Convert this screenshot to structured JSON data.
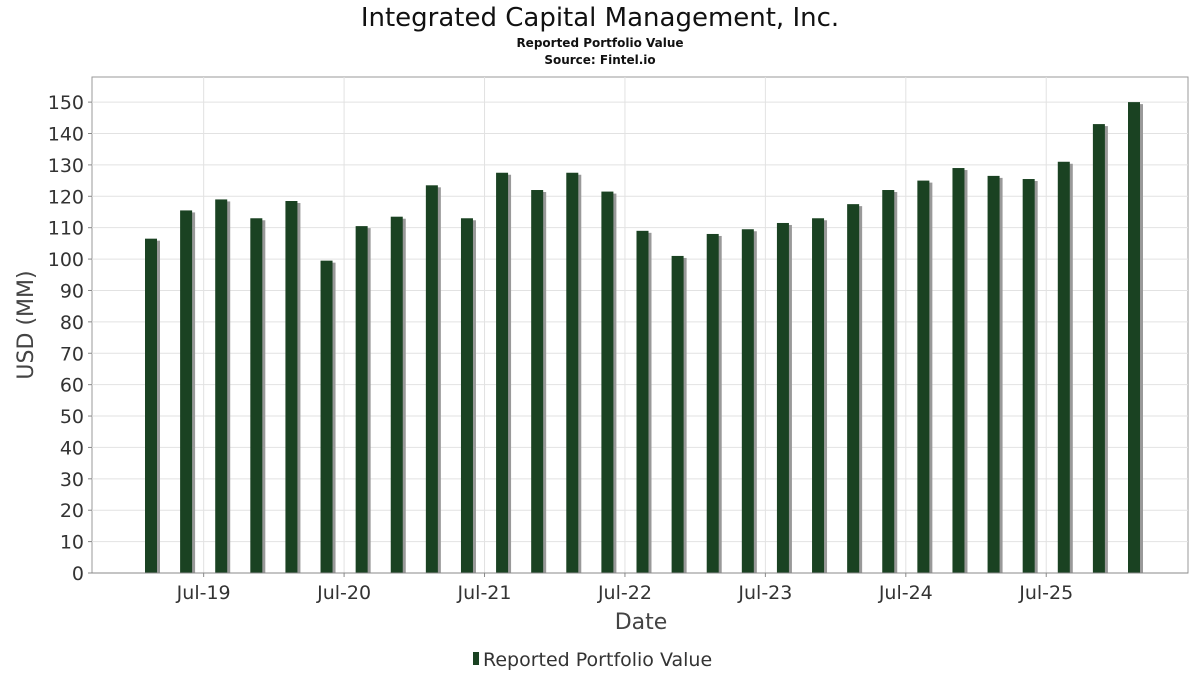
{
  "chart_data": {
    "type": "bar",
    "title": "Integrated Capital Management, Inc.",
    "subtitle": "Reported Portfolio Value",
    "source": "Source: Fintel.io",
    "xlabel": "Date",
    "ylabel": "USD (MM)",
    "ylim": [
      0,
      158
    ],
    "yticks": [
      0,
      10,
      20,
      30,
      40,
      50,
      60,
      70,
      80,
      90,
      100,
      110,
      120,
      130,
      140,
      150
    ],
    "grid": true,
    "legend_position": "bottom-center",
    "xtick_labels": [
      {
        "label": "Jul-19",
        "after_bar_index": 1
      },
      {
        "label": "Jul-20",
        "after_bar_index": 5
      },
      {
        "label": "Jul-21",
        "after_bar_index": 9
      },
      {
        "label": "Jul-22",
        "after_bar_index": 13
      },
      {
        "label": "Jul-23",
        "after_bar_index": 17
      },
      {
        "label": "Jul-24",
        "after_bar_index": 21
      },
      {
        "label": "Jul-25",
        "after_bar_index": 25
      }
    ],
    "series": [
      {
        "name": "Reported Portfolio Value",
        "color": "#1a4222",
        "shadow_color": "#999999",
        "values": [
          106.5,
          115.5,
          119.0,
          113.0,
          118.5,
          99.5,
          110.5,
          113.5,
          123.5,
          113.0,
          127.5,
          122.0,
          127.5,
          121.5,
          109.0,
          101.0,
          108.0,
          109.5,
          111.5,
          113.0,
          117.5,
          122.0,
          125.0,
          129.0,
          126.5,
          125.5,
          131.0,
          143.0,
          150.0
        ]
      }
    ]
  }
}
